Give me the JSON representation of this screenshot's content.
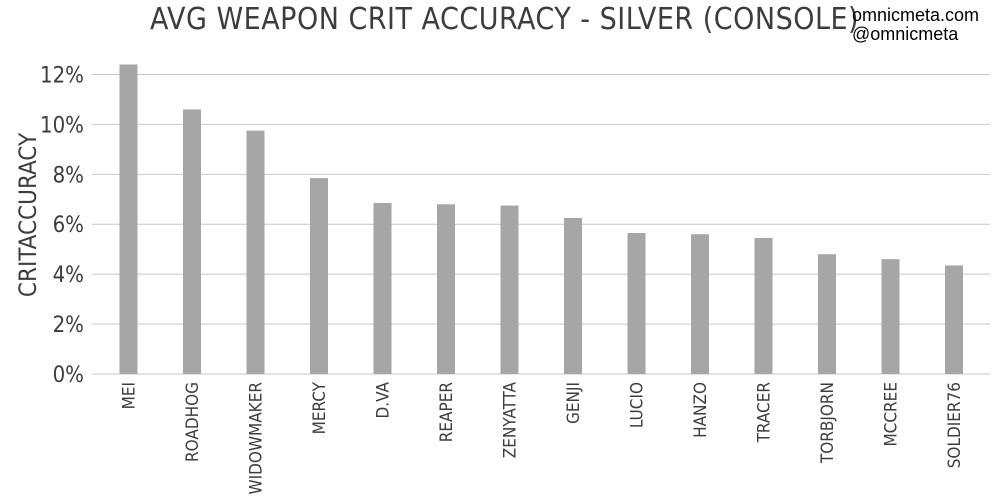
{
  "title": "AVG WEAPON CRIT ACCURACY - SILVER (CONSOLE)",
  "credits": {
    "site": "omnicmeta.com",
    "handle": "@omnicmeta"
  },
  "chart_data": {
    "type": "bar",
    "title": "AVG WEAPON CRIT ACCURACY - SILVER (CONSOLE)",
    "xlabel": "",
    "ylabel": "CRITACCURACY",
    "categories": [
      "MEI",
      "ROADHOG",
      "WIDOWMAKER",
      "MERCY",
      "D.VA",
      "REAPER",
      "ZENYATTA",
      "GENJI",
      "LUCIO",
      "HANZO",
      "TRACER",
      "TORBJORN",
      "MCCREE",
      "SOLDIER76"
    ],
    "values": [
      12.4,
      10.6,
      9.75,
      7.85,
      6.85,
      6.8,
      6.75,
      6.25,
      5.65,
      5.6,
      5.45,
      4.8,
      4.6,
      4.35
    ],
    "ylim": [
      0,
      12.5
    ],
    "yticks": [
      0,
      2,
      4,
      6,
      8,
      10,
      12
    ],
    "ytick_labels": [
      "0%",
      "2%",
      "4%",
      "6%",
      "8%",
      "10%",
      "12%"
    ],
    "grid": true,
    "bar_color": "#a6a6a6",
    "grid_color": "#c8c8c8",
    "text_color": "#3d3d3d"
  }
}
